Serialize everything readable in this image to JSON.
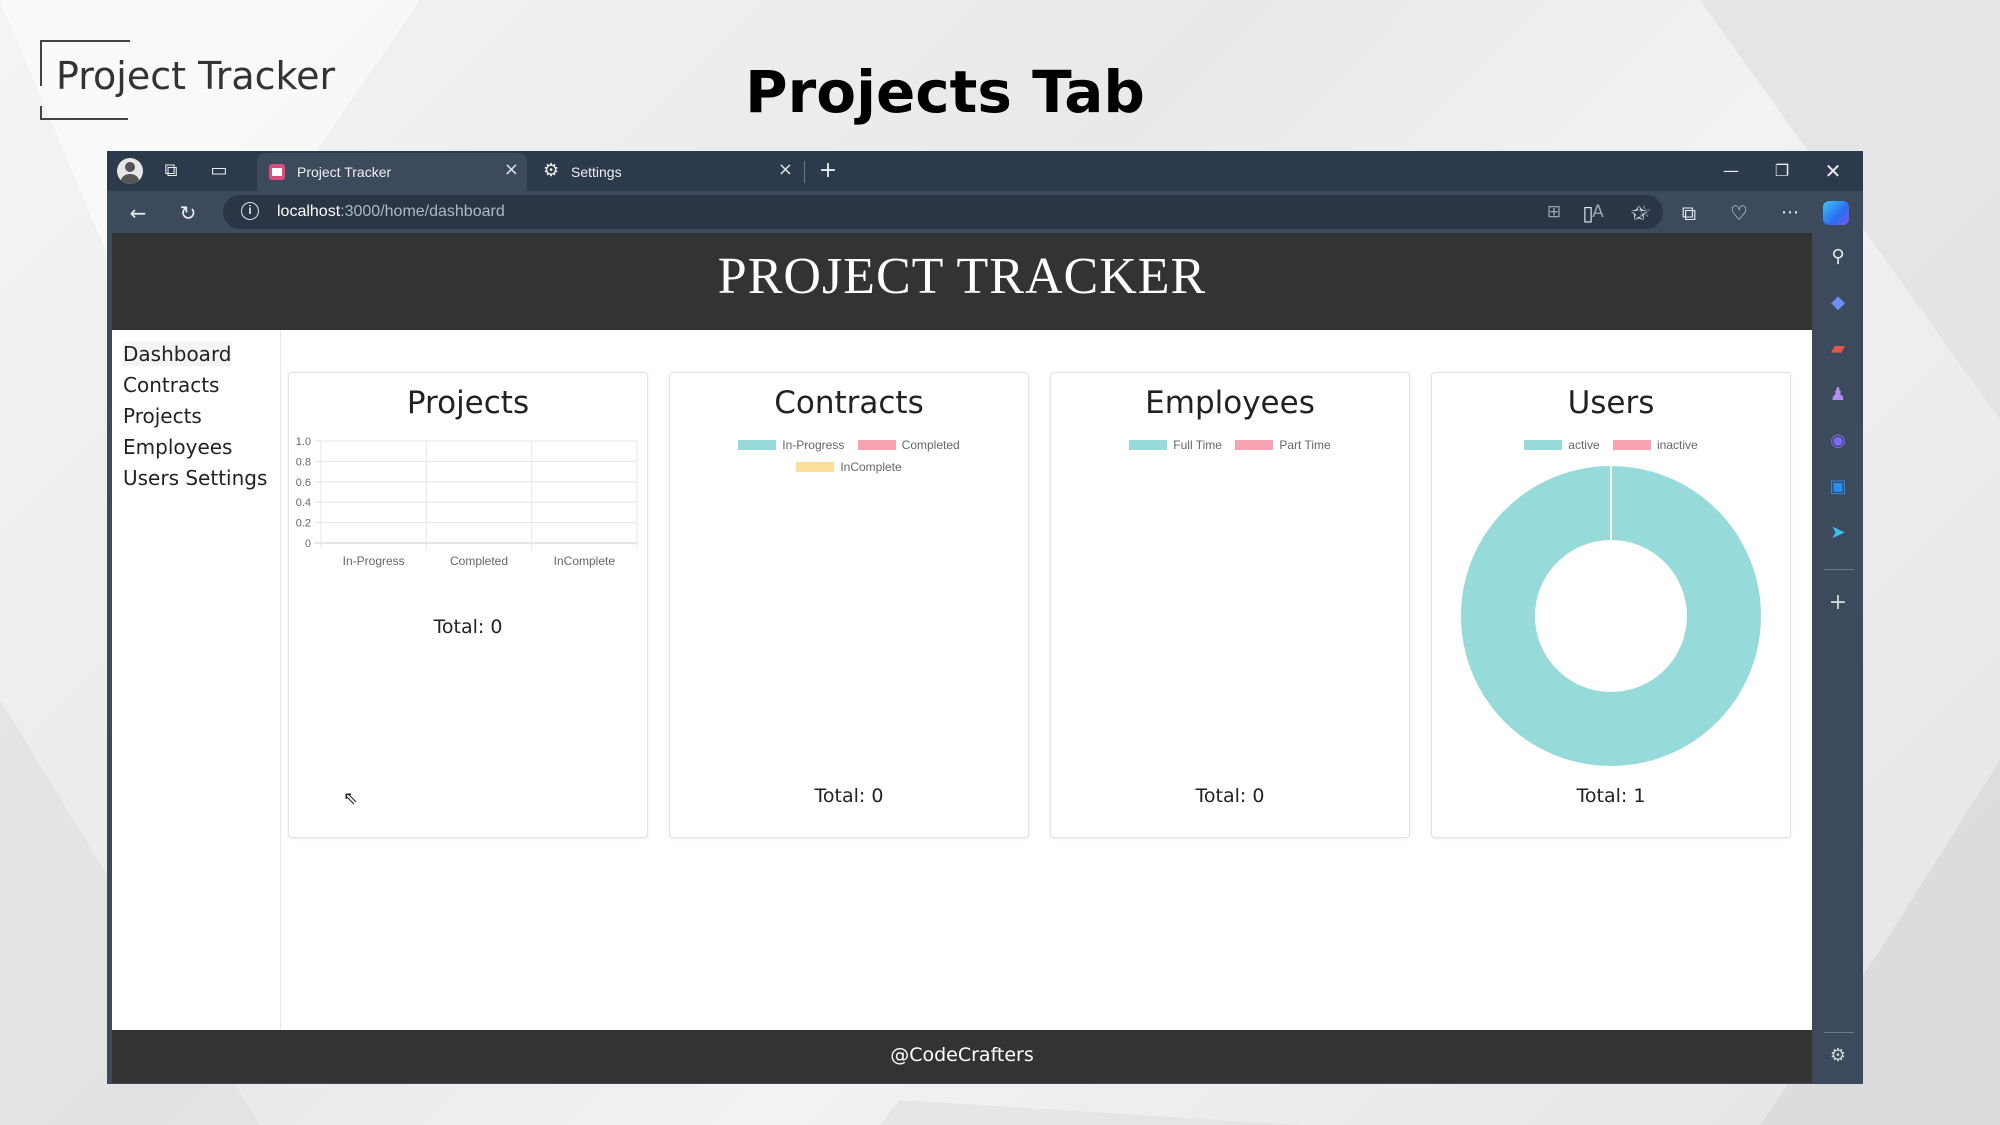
{
  "slide": {
    "brand": "Project Tracker",
    "title": "Projects Tab"
  },
  "browser": {
    "tabs": [
      {
        "label": "Project Tracker",
        "icon": "app-favicon-icon",
        "active": true
      },
      {
        "label": "Settings",
        "icon": "gear-icon",
        "active": false
      }
    ],
    "url": {
      "host": "localhost",
      "path": ":3000/home/dashboard"
    }
  },
  "app": {
    "title": "PROJECT TRACKER",
    "nav": [
      "Dashboard",
      "Contracts",
      "Projects",
      "Employees",
      "Users Settings"
    ],
    "footer": "@CodeCrafters"
  },
  "colors": {
    "teal": "#96dbd9",
    "pink": "#f8a3b3",
    "yellow": "#fddf9a",
    "header": "#333333"
  },
  "cards": {
    "projects": {
      "title": "Projects",
      "total": "Total: 0"
    },
    "contracts": {
      "title": "Contracts",
      "total": "Total: 0",
      "legend": [
        "In-Progress",
        "Completed",
        "InComplete"
      ]
    },
    "employees": {
      "title": "Employees",
      "total": "Total: 0",
      "legend": [
        "Full Time",
        "Part Time"
      ]
    },
    "users": {
      "title": "Users",
      "total": "Total: 1",
      "legend": [
        "active",
        "inactive"
      ]
    }
  },
  "chart_data": [
    {
      "type": "bar",
      "title": "Projects",
      "categories": [
        "In-Progress",
        "Completed",
        "InComplete"
      ],
      "values": [
        0,
        0,
        0
      ],
      "ylim": [
        0,
        1.0
      ],
      "yticks": [
        "1.0",
        "0.8",
        "0.6",
        "0.4",
        "0.2",
        "0"
      ],
      "grid": true,
      "legend": "none"
    },
    {
      "type": "pie",
      "title": "Users",
      "donut": true,
      "labels": [
        "active",
        "inactive"
      ],
      "values": [
        1,
        0
      ],
      "legend": "top"
    }
  ]
}
